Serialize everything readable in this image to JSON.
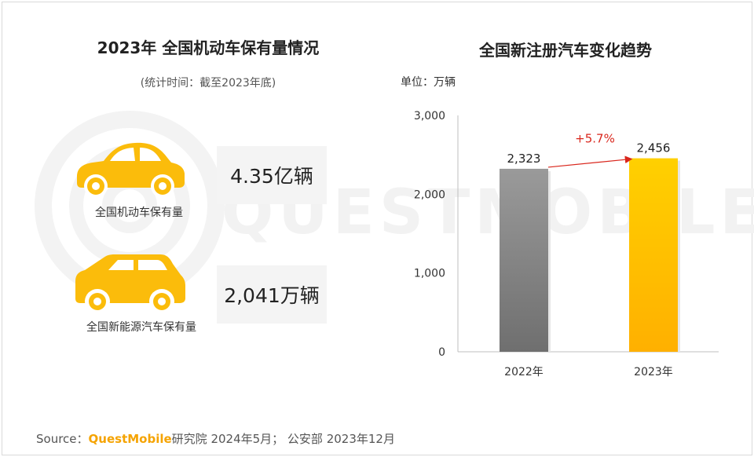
{
  "left_panel": {
    "title": "2023年 全国机动车保有量情况",
    "subtitle": "(统计时间：截至2023年底)",
    "items": [
      {
        "label": "全国机动车保有量",
        "value": "4.35亿辆",
        "icon": "sedan-car-icon"
      },
      {
        "label": "全国新能源汽车保有量",
        "value": "2,041万辆",
        "icon": "suv-car-icon"
      }
    ]
  },
  "watermark": "QUESTMOBILE",
  "right_panel": {
    "title": "全国新注册汽车变化趋势",
    "unit": "单位：万辆"
  },
  "chart_data": {
    "type": "bar",
    "title": "全国新注册汽车变化趋势",
    "ylabel": "单位：万辆",
    "categories": [
      "2022年",
      "2023年"
    ],
    "values": [
      2323,
      2456
    ],
    "value_labels": [
      "2,323",
      "2,456"
    ],
    "ylim": [
      0,
      3000
    ],
    "yticks": [
      0,
      1000,
      2000,
      3000
    ],
    "ytick_labels": [
      "0",
      "1,000",
      "2,000",
      "3,000"
    ],
    "annotation": "+5.7%",
    "colors": {
      "bar_2022": "#8c8c8c",
      "bar_2023": "#ffc400",
      "annotation": "#d9261c",
      "car": "#fbbc0b"
    },
    "grid": false
  },
  "source": {
    "prefix": "Source：",
    "brand": "QuestMobile",
    "rest": "研究院 2024年5月； 公安部 2023年12月"
  }
}
